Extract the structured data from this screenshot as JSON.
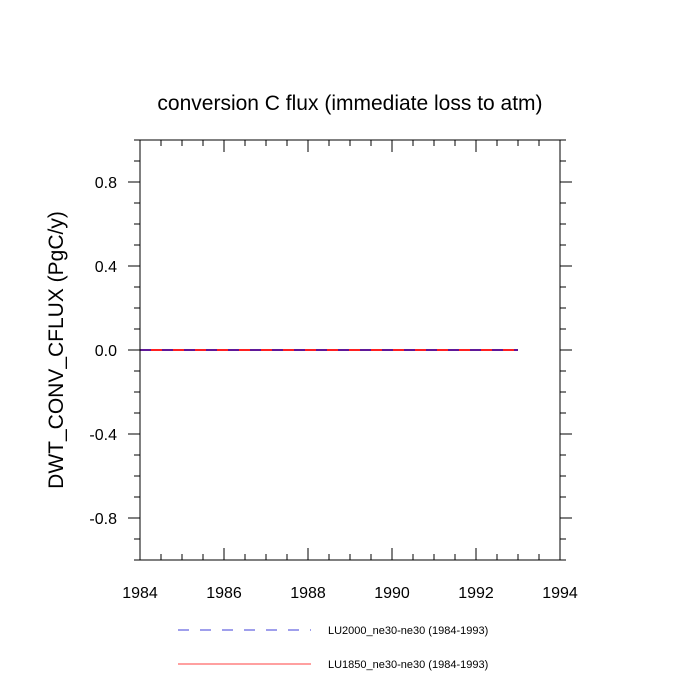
{
  "chart_data": {
    "type": "line",
    "title": "conversion C flux (immediate loss to atm)",
    "xlabel": "",
    "ylabel": "DWT_CONV_CFLUX  (PgC/y)",
    "xlim": [
      1984,
      1994
    ],
    "ylim": [
      -1.0,
      1.0
    ],
    "x_ticks": [
      1984,
      1986,
      1988,
      1990,
      1992,
      1994
    ],
    "x_tick_labels": [
      "1984",
      "1986",
      "1988",
      "1990",
      "1992",
      "1994"
    ],
    "y_ticks": [
      -0.8,
      -0.4,
      0.0,
      0.4,
      0.8
    ],
    "y_tick_labels": [
      "-0.8",
      "-0.4",
      "0.0",
      "0.4",
      "0.8"
    ],
    "grid": false,
    "legend_position": "bottom",
    "x": [
      1984,
      1985,
      1986,
      1987,
      1988,
      1989,
      1990,
      1991,
      1992,
      1993
    ],
    "series": [
      {
        "name": "LU2000_ne30-ne30 (1984-1993)",
        "color": "#0000cc",
        "dash": "dashed",
        "values": [
          0,
          0,
          0,
          0,
          0,
          0,
          0,
          0,
          0,
          0
        ]
      },
      {
        "name": "LU1850_ne30-ne30 (1984-1993)",
        "color": "#ff0000",
        "dash": "solid",
        "values": [
          0,
          0,
          0,
          0,
          0,
          0,
          0,
          0,
          0,
          0
        ]
      }
    ]
  }
}
